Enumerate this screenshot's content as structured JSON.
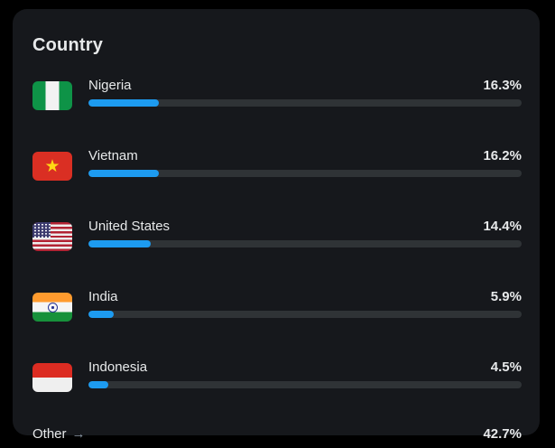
{
  "card": {
    "title": "Country",
    "colors": {
      "page_background": "#000000",
      "card_background": "#16181c",
      "bar_fill": "#1d9bf0",
      "bar_track": "#2f3336",
      "text_primary": "#e7e9ea",
      "arrow_color": "#8b98a5"
    },
    "rows": [
      {
        "name": "Nigeria",
        "flag_icon": "nigeria-flag-icon",
        "value_label": "16.3%",
        "value_pct": 16.3
      },
      {
        "name": "Vietnam",
        "flag_icon": "vietnam-flag-icon",
        "value_label": "16.2%",
        "value_pct": 16.2
      },
      {
        "name": "United States",
        "flag_icon": "united-states-flag-icon",
        "value_label": "14.4%",
        "value_pct": 14.4
      },
      {
        "name": "India",
        "flag_icon": "india-flag-icon",
        "value_label": "5.9%",
        "value_pct": 5.9
      },
      {
        "name": "Indonesia",
        "flag_icon": "indonesia-flag-icon",
        "value_label": "4.5%",
        "value_pct": 4.5
      }
    ],
    "other": {
      "label": "Other",
      "arrow": "→",
      "value_label": "42.7%",
      "value_pct": 42.7
    }
  },
  "chart_data": {
    "type": "bar",
    "orientation": "horizontal",
    "title": "Country",
    "categories": [
      "Nigeria",
      "Vietnam",
      "United States",
      "India",
      "Indonesia",
      "Other"
    ],
    "values": [
      16.3,
      16.2,
      14.4,
      5.9,
      4.5,
      42.7
    ],
    "unit": "%",
    "xlim": [
      0,
      100
    ],
    "grid": false,
    "legend": false
  }
}
